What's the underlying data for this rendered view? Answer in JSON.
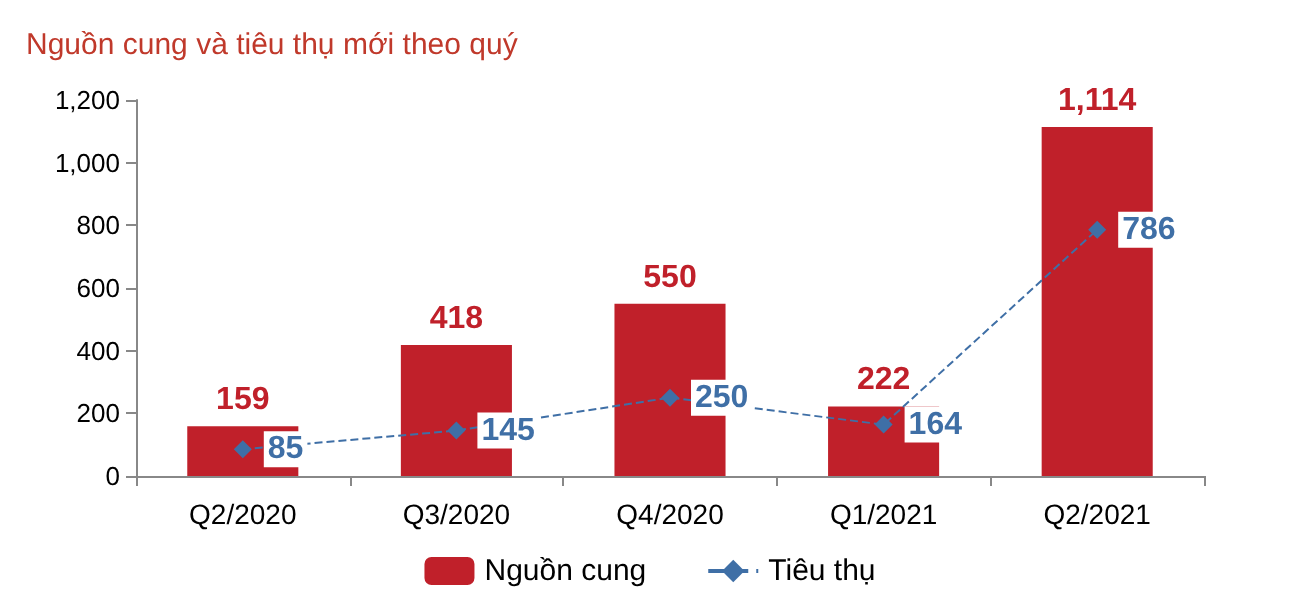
{
  "chart_data": {
    "type": "bar",
    "title": "Nguồn cung và tiêu thụ mới theo quý",
    "categories": [
      "Q2/2020",
      "Q3/2020",
      "Q4/2020",
      "Q1/2021",
      "Q2/2021"
    ],
    "series": [
      {
        "name": "Nguồn cung",
        "color": "#c0202a",
        "values": [
          159,
          418,
          550,
          222,
          1114
        ],
        "value_labels": [
          "159",
          "418",
          "550",
          "222",
          "1,114"
        ]
      },
      {
        "name": "Tiêu thụ",
        "type": "line",
        "color": "#3f6fa6",
        "values": [
          85,
          145,
          250,
          164,
          786
        ],
        "value_labels": [
          "85",
          "145",
          "250",
          "164",
          "786"
        ],
        "marker": "diamond",
        "line_style": "dashed"
      }
    ],
    "ylim": [
      0,
      1200
    ],
    "yticks": [
      0,
      200,
      400,
      600,
      800,
      {
        "value": 1000,
        "label": "1,000"
      },
      {
        "value": 1200,
        "label": "1,200"
      }
    ],
    "grid": false,
    "legend": "bottom"
  }
}
